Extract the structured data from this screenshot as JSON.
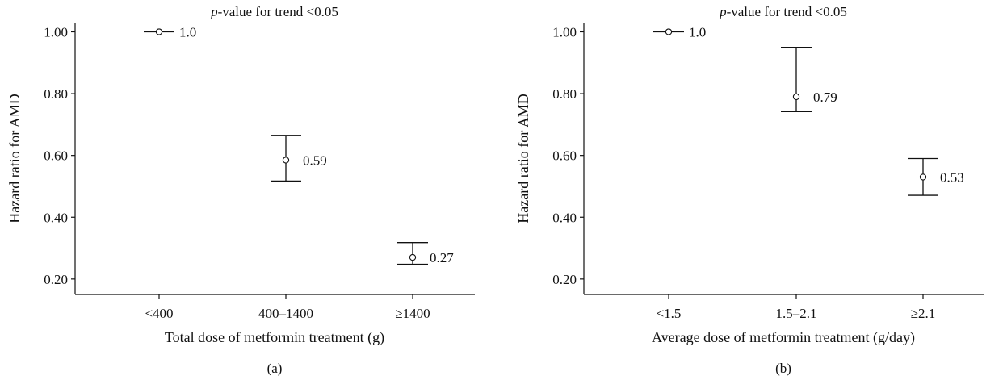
{
  "chart_data": [
    {
      "type": "scatter",
      "panel_label": "(a)",
      "annotation_prefix": "p",
      "annotation_rest": "-value for trend <0.05",
      "xlabel": "Total dose of metformin treatment (g)",
      "ylabel": "Hazard ratio for AMD",
      "ylim": [
        0.15,
        1.03
      ],
      "yticks": [
        0.2,
        0.4,
        0.6,
        0.8,
        1.0
      ],
      "ytick_labels": [
        "0.20",
        "0.40",
        "0.60",
        "0.80",
        "1.00"
      ],
      "categories": [
        "<400",
        "400–1400",
        "≥1400"
      ],
      "points": [
        {
          "category": "<400",
          "hr": 1.0,
          "lower": 1.0,
          "upper": 1.0,
          "label": "1.0"
        },
        {
          "category": "400–1400",
          "hr": 0.585,
          "lower": 0.517,
          "upper": 0.665,
          "label": "0.59"
        },
        {
          "category": "≥1400",
          "hr": 0.27,
          "lower": 0.248,
          "upper": 0.318,
          "label": "0.27"
        }
      ],
      "grid": false
    },
    {
      "type": "scatter",
      "panel_label": "(b)",
      "annotation_prefix": "p",
      "annotation_rest": "-value for trend <0.05",
      "xlabel": "Average dose of metformin treatment (g/day)",
      "ylabel": "Hazard ratio for AMD",
      "ylim": [
        0.15,
        1.03
      ],
      "yticks": [
        0.2,
        0.4,
        0.6,
        0.8,
        1.0
      ],
      "ytick_labels": [
        "0.20",
        "0.40",
        "0.60",
        "0.80",
        "1.00"
      ],
      "categories": [
        "<1.5",
        "1.5–2.1",
        "≥2.1"
      ],
      "points": [
        {
          "category": "<1.5",
          "hr": 1.0,
          "lower": 1.0,
          "upper": 1.0,
          "label": "1.0"
        },
        {
          "category": "1.5–2.1",
          "hr": 0.79,
          "lower": 0.742,
          "upper": 0.95,
          "label": "0.79"
        },
        {
          "category": "≥2.1",
          "hr": 0.53,
          "lower": 0.471,
          "upper": 0.59,
          "label": "0.53"
        }
      ],
      "grid": false
    }
  ]
}
